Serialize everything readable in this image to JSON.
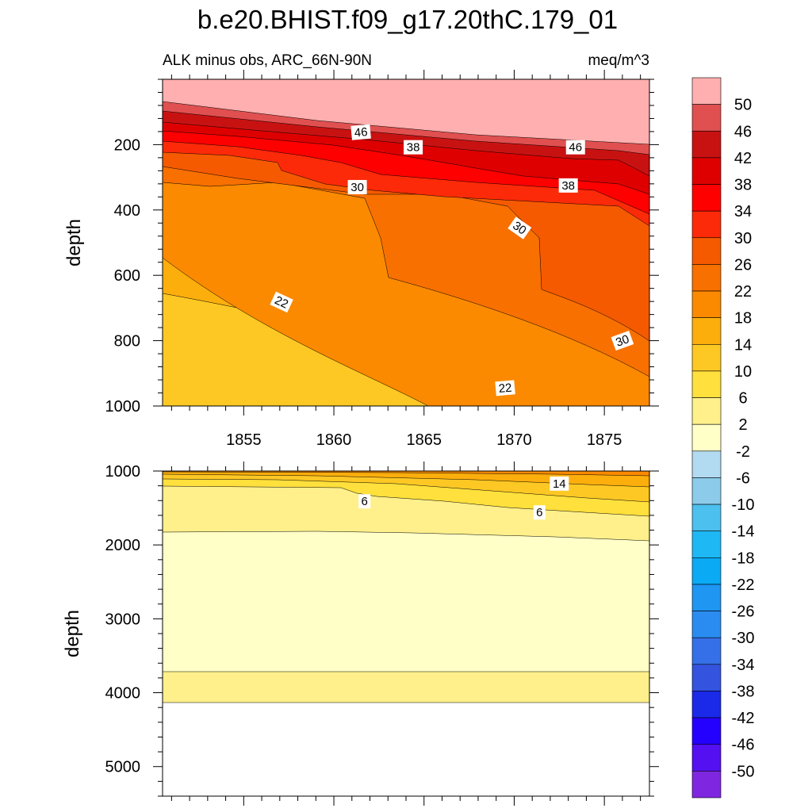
{
  "chart_data": {
    "type": "heatmap",
    "title": "b.e20.BHIST.f09_g17.20thC.179_01",
    "subtitle_left": "ALK minus obs, ARC_66N-90N",
    "subtitle_right": "meq/m^3",
    "xlim": [
      1850.5,
      1877.5
    ],
    "x_ticks": [
      1855,
      1860,
      1865,
      1870,
      1875
    ],
    "x_tick_labels": [
      "1855",
      "1860",
      "1865",
      "1870",
      "1875"
    ],
    "colors": {
      "lt_m50": "#7f27e0",
      "m50_m46": "#5410f0",
      "m46_m42": "#2400ff",
      "m42_m38": "#1a2ae8",
      "m38_m34": "#3454df",
      "m34_m30": "#3670e8",
      "m30_m26": "#2a8cf0",
      "m26_m22": "#1e96f2",
      "m22_m18": "#0aaaf5",
      "m18_m14": "#1eb8f4",
      "m14_m10": "#4cc0ee",
      "m10_m6": "#8ccbea",
      "m6_m2": "#b2daf0",
      "m2_2": "#ffffc7",
      "2_6": "#fff08c",
      "6_10": "#ffe03c",
      "10_14": "#fdc824",
      "14_18": "#fcae0c",
      "18_22": "#fb8a00",
      "22_26": "#f87000",
      "26_30": "#f55a00",
      "30_34": "#fc2a08",
      "34_38": "#ff0000",
      "38_42": "#de0000",
      "42_46": "#c81212",
      "46_50": "#e05050",
      "gt_50": "#ffafaf"
    },
    "top_panel": {
      "ylabel": "depth",
      "ylim": [
        1000,
        0
      ],
      "y_ticks": [
        200,
        400,
        600,
        800,
        1000
      ],
      "y_tick_labels": [
        "200",
        "400",
        "600",
        "800",
        "1000"
      ],
      "x_axis_labeled": true,
      "contour_labels": [
        {
          "text": "46",
          "x": 1861.5,
          "y": 162,
          "angle": -5
        },
        {
          "text": "38",
          "x": 1864.4,
          "y": 208,
          "angle": 0
        },
        {
          "text": "46",
          "x": 1873.4,
          "y": 208,
          "angle": 0
        },
        {
          "text": "30",
          "x": 1861.3,
          "y": 330,
          "angle": 0
        },
        {
          "text": "38",
          "x": 1873.0,
          "y": 325,
          "angle": 0
        },
        {
          "text": "30",
          "x": 1870.3,
          "y": 455,
          "angle": 35
        },
        {
          "text": "22",
          "x": 1857.1,
          "y": 682,
          "angle": 25
        },
        {
          "text": "30",
          "x": 1876.0,
          "y": 800,
          "angle": -20
        },
        {
          "text": "22",
          "x": 1869.5,
          "y": 945,
          "angle": -5
        }
      ]
    },
    "bottom_panel": {
      "ylabel": "depth",
      "ylim": [
        5400,
        1000
      ],
      "y_ticks": [
        1000,
        2000,
        3000,
        4000,
        5000
      ],
      "y_tick_labels": [
        "1000",
        "2000",
        "3000",
        "4000",
        "5000"
      ],
      "x_axis_labeled": false,
      "contour_labels": [
        {
          "text": "14",
          "x": 1872.5,
          "y": 1170,
          "angle": 0
        },
        {
          "text": "6",
          "x": 1861.7,
          "y": 1410,
          "angle": 0
        },
        {
          "text": "6",
          "x": 1871.4,
          "y": 1560,
          "angle": 0
        }
      ]
    },
    "colorbar": {
      "labels": [
        "50",
        "46",
        "42",
        "38",
        "34",
        "30",
        "26",
        "22",
        "18",
        "14",
        "10",
        "6",
        "2",
        "-2",
        "-6",
        "-10",
        "-14",
        "-18",
        "-22",
        "-26",
        "-30",
        "-34",
        "-38",
        "-42",
        "-46",
        "-50"
      ]
    }
  }
}
